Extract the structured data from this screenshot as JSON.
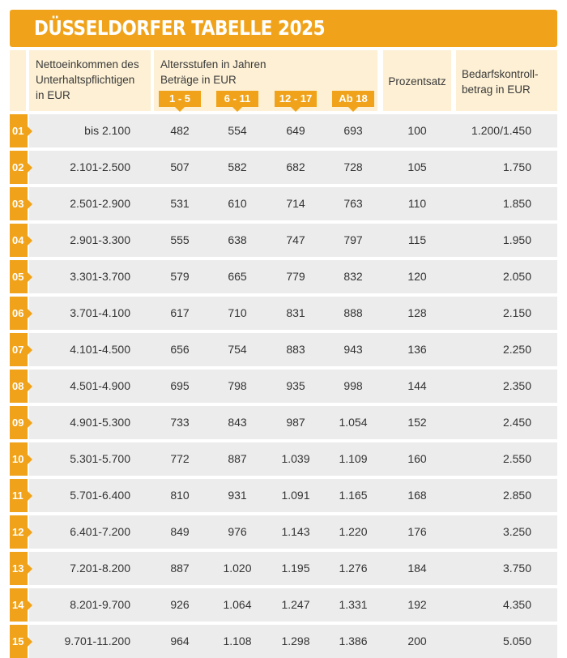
{
  "title": "DÜSSELDORFER TABELLE 2025",
  "header": {
    "income": [
      "Nettoeinkommen des",
      "Unterhaltspflichtigen",
      "in EUR"
    ],
    "age": [
      "Altersstufen in Jahren",
      "Beträge in EUR"
    ],
    "age_groups": [
      "1 - 5",
      "6 - 11",
      "12 - 17",
      "Ab 18"
    ],
    "percent": "Prozentsatz",
    "control": [
      "Bedarfskontroll-",
      "betrag in EUR"
    ]
  },
  "rows": [
    {
      "num": "01",
      "income": "bis 2.100",
      "v": [
        "482",
        "554",
        "649",
        "693"
      ],
      "pct": "100",
      "bkb": "1.200/1.450"
    },
    {
      "num": "02",
      "income": "2.101-2.500",
      "v": [
        "507",
        "582",
        "682",
        "728"
      ],
      "pct": "105",
      "bkb": "1.750"
    },
    {
      "num": "03",
      "income": "2.501-2.900",
      "v": [
        "531",
        "610",
        "714",
        "763"
      ],
      "pct": "110",
      "bkb": "1.850"
    },
    {
      "num": "04",
      "income": "2.901-3.300",
      "v": [
        "555",
        "638",
        "747",
        "797"
      ],
      "pct": "115",
      "bkb": "1.950"
    },
    {
      "num": "05",
      "income": "3.301-3.700",
      "v": [
        "579",
        "665",
        "779",
        "832"
      ],
      "pct": "120",
      "bkb": "2.050"
    },
    {
      "num": "06",
      "income": "3.701-4.100",
      "v": [
        "617",
        "710",
        "831",
        "888"
      ],
      "pct": "128",
      "bkb": "2.150"
    },
    {
      "num": "07",
      "income": "4.101-4.500",
      "v": [
        "656",
        "754",
        "883",
        "943"
      ],
      "pct": "136",
      "bkb": "2.250"
    },
    {
      "num": "08",
      "income": "4.501-4.900",
      "v": [
        "695",
        "798",
        "935",
        "998"
      ],
      "pct": "144",
      "bkb": "2.350"
    },
    {
      "num": "09",
      "income": "4.901-5.300",
      "v": [
        "733",
        "843",
        "987",
        "1.054"
      ],
      "pct": "152",
      "bkb": "2.450"
    },
    {
      "num": "10",
      "income": "5.301-5.700",
      "v": [
        "772",
        "887",
        "1.039",
        "1.109"
      ],
      "pct": "160",
      "bkb": "2.550"
    },
    {
      "num": "11",
      "income": "5.701-6.400",
      "v": [
        "810",
        "931",
        "1.091",
        "1.165"
      ],
      "pct": "168",
      "bkb": "2.850"
    },
    {
      "num": "12",
      "income": "6.401-7.200",
      "v": [
        "849",
        "976",
        "1.143",
        "1.220"
      ],
      "pct": "176",
      "bkb": "3.250"
    },
    {
      "num": "13",
      "income": "7.201-8.200",
      "v": [
        "887",
        "1.020",
        "1.195",
        "1.276"
      ],
      "pct": "184",
      "bkb": "3.750"
    },
    {
      "num": "14",
      "income": "8.201-9.700",
      "v": [
        "926",
        "1.064",
        "1.247",
        "1.331"
      ],
      "pct": "192",
      "bkb": "4.350"
    },
    {
      "num": "15",
      "income": "9.701-11.200",
      "v": [
        "964",
        "1.108",
        "1.298",
        "1.386"
      ],
      "pct": "200",
      "bkb": "5.050"
    }
  ]
}
